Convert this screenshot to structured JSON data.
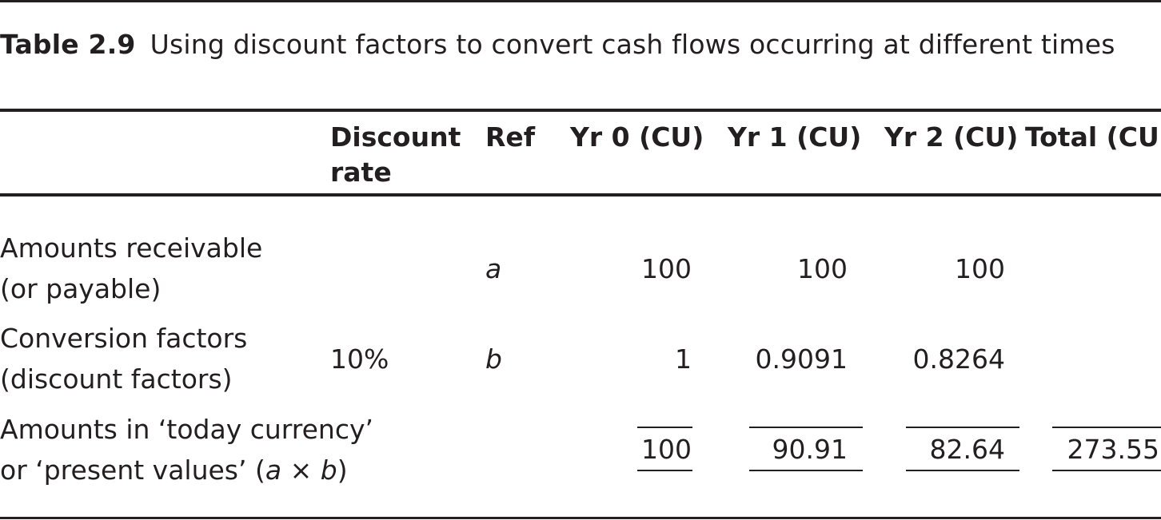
{
  "caption": {
    "number": "Table 2.9",
    "title": "Using discount factors to convert cash flows occurring at different times"
  },
  "headers": {
    "discount_rate_line1": "Discount",
    "discount_rate_line2": "rate",
    "ref": "Ref",
    "yr0": "Yr 0 (CU)",
    "yr1": "Yr 1 (CU)",
    "yr2": "Yr 2 (CU)",
    "total": "Total (CU)"
  },
  "rows": [
    {
      "label_line1": "Amounts receivable",
      "label_line2": "(or payable)",
      "discount_rate": "",
      "ref": "a",
      "yr0": "100",
      "yr1": "100",
      "yr2": "100",
      "total": ""
    },
    {
      "label_line1": "Conversion factors",
      "label_line2": "(discount factors)",
      "discount_rate": "10%",
      "ref": "b",
      "yr0": "1",
      "yr1": "0.9091",
      "yr2": "0.8264",
      "total": ""
    },
    {
      "label_line1": "Amounts in ‘today currency’",
      "label_line2_prefix": "or ‘present values’ (",
      "label_line2_a": "a",
      "label_line2_times": " × ",
      "label_line2_b": "b",
      "label_line2_suffix": ")",
      "discount_rate": "",
      "ref": "",
      "yr0": "100",
      "yr1": "90.91",
      "yr2": "82.64",
      "total": "273.55"
    }
  ]
}
